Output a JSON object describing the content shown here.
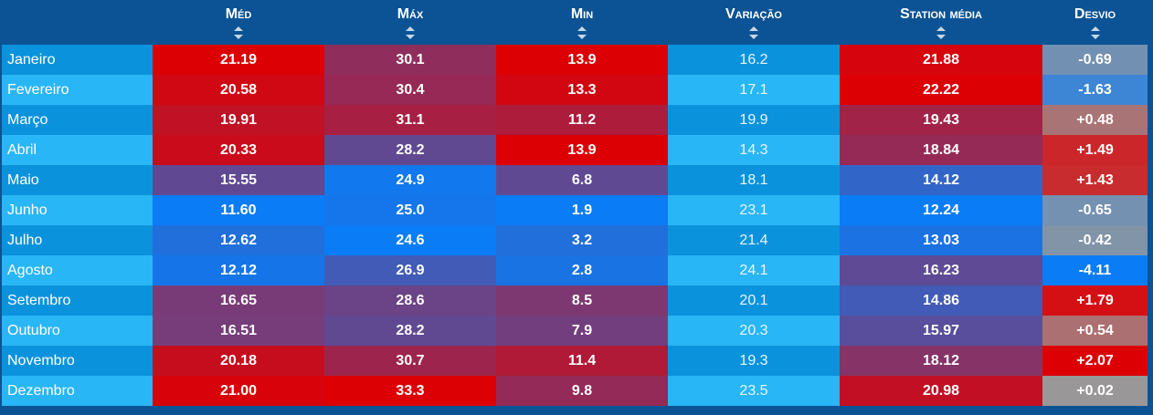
{
  "chart_data": {
    "type": "table",
    "columns": [
      {
        "key": "month",
        "label": ""
      },
      {
        "key": "med",
        "label": "Méd"
      },
      {
        "key": "max",
        "label": "Máx"
      },
      {
        "key": "min",
        "label": "Min"
      },
      {
        "key": "var",
        "label": "Variação"
      },
      {
        "key": "station",
        "label": "Station média"
      },
      {
        "key": "desvio",
        "label": "Desvio"
      }
    ],
    "rows": [
      {
        "month": "Janeiro",
        "med": "21.19",
        "max": "30.1",
        "min": "13.9",
        "var": "16.2",
        "station": "21.88",
        "desvio": "-0.69"
      },
      {
        "month": "Fevereiro",
        "med": "20.58",
        "max": "30.4",
        "min": "13.3",
        "var": "17.1",
        "station": "22.22",
        "desvio": "-1.63"
      },
      {
        "month": "Março",
        "med": "19.91",
        "max": "31.1",
        "min": "11.2",
        "var": "19.9",
        "station": "19.43",
        "desvio": "+0.48"
      },
      {
        "month": "Abril",
        "med": "20.33",
        "max": "28.2",
        "min": "13.9",
        "var": "14.3",
        "station": "18.84",
        "desvio": "+1.49"
      },
      {
        "month": "Maio",
        "med": "15.55",
        "max": "24.9",
        "min": "6.8",
        "var": "18.1",
        "station": "14.12",
        "desvio": "+1.43"
      },
      {
        "month": "Junho",
        "med": "11.60",
        "max": "25.0",
        "min": "1.9",
        "var": "23.1",
        "station": "12.24",
        "desvio": "-0.65"
      },
      {
        "month": "Julho",
        "med": "12.62",
        "max": "24.6",
        "min": "3.2",
        "var": "21.4",
        "station": "13.03",
        "desvio": "-0.42"
      },
      {
        "month": "Agosto",
        "med": "12.12",
        "max": "26.9",
        "min": "2.8",
        "var": "24.1",
        "station": "16.23",
        "desvio": "-4.11"
      },
      {
        "month": "Setembro",
        "med": "16.65",
        "max": "28.6",
        "min": "8.5",
        "var": "20.1",
        "station": "14.86",
        "desvio": "+1.79"
      },
      {
        "month": "Outubro",
        "med": "16.51",
        "max": "28.2",
        "min": "7.9",
        "var": "20.3",
        "station": "15.97",
        "desvio": "+0.54"
      },
      {
        "month": "Novembro",
        "med": "20.18",
        "max": "30.7",
        "min": "11.4",
        "var": "19.3",
        "station": "18.12",
        "desvio": "+2.07"
      },
      {
        "month": "Dezembro",
        "med": "21.00",
        "max": "33.3",
        "min": "9.8",
        "var": "23.5",
        "station": "20.98",
        "desvio": "+0.02"
      }
    ],
    "colors": {
      "header_bg": "#0b5394",
      "row_odd": "#0a93dc",
      "row_even": "#29b6f6",
      "cold": "#0a7cf5",
      "warm": "#dc0005",
      "desvio_neutral": "#999999",
      "desvio_warm": "#dc0005",
      "desvio_cold": "#0a7cf5"
    }
  }
}
